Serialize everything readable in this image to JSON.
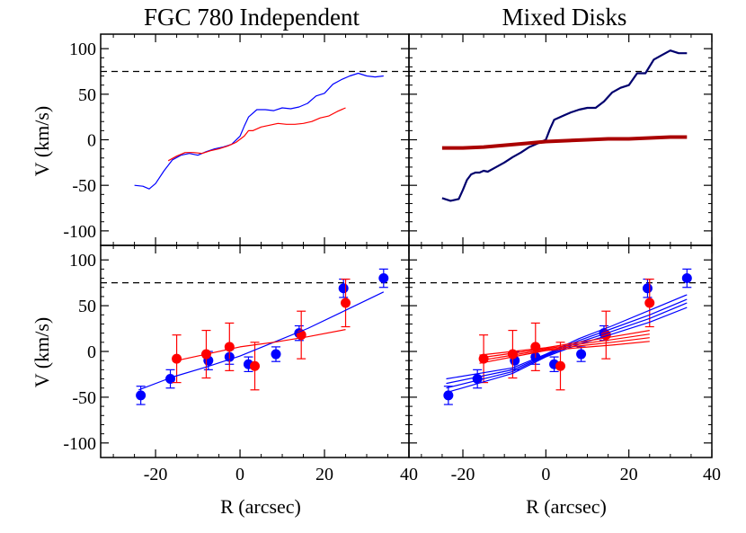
{
  "chart_data": [
    {
      "type": "line",
      "panel": "top-left",
      "title": "FGC 780 Independent",
      "xlabel": "",
      "ylabel": "V (km/s)",
      "xlim": [
        -33,
        40
      ],
      "ylim": [
        -110,
        110
      ],
      "yticks": [
        -100,
        -50,
        0,
        50,
        100
      ],
      "reference_line": {
        "y": 75,
        "style": "dashed",
        "color": "#000000"
      },
      "series": [
        {
          "color": "#0000ff",
          "x": [
            -25,
            -23,
            -21.5,
            -20,
            -18,
            -16,
            -14,
            -12,
            -10,
            -8,
            -6,
            -4,
            -2,
            0,
            1,
            2,
            4,
            6,
            8,
            10,
            12,
            14,
            16,
            18,
            20,
            22,
            24,
            26,
            28,
            30,
            32,
            34
          ],
          "y": [
            -50,
            -51,
            -54,
            -48,
            -34,
            -22,
            -17,
            -15,
            -17,
            -13,
            -10,
            -8,
            -5,
            4,
            15,
            25,
            33,
            33,
            32,
            35,
            34,
            36,
            40,
            48,
            51,
            61,
            66,
            70,
            73,
            70,
            69,
            70
          ]
        },
        {
          "color": "#ff0000",
          "x": [
            -17,
            -15,
            -13,
            -11,
            -9,
            -7,
            -5,
            -3,
            -1,
            1,
            2,
            3,
            5,
            7,
            9,
            11,
            13,
            15,
            17,
            19,
            21,
            23,
            25
          ],
          "y": [
            -23,
            -18,
            -14,
            -14,
            -15,
            -12,
            -10,
            -7,
            -3,
            4,
            10,
            10,
            14,
            16,
            18,
            17,
            17,
            18,
            20,
            24,
            26,
            31,
            35
          ]
        }
      ]
    },
    {
      "type": "line",
      "panel": "top-right",
      "title": "Mixed Disks",
      "xlabel": "",
      "ylabel": "",
      "xlim": [
        -33,
        40
      ],
      "ylim": [
        -110,
        110
      ],
      "reference_line": {
        "y": 75,
        "style": "dashed",
        "color": "#000000"
      },
      "series": [
        {
          "color": "#00006e",
          "x": [
            -25,
            -23,
            -21,
            -20,
            -19,
            -18,
            -17,
            -16,
            -15,
            -14,
            -12,
            -10,
            -8,
            -6,
            -4,
            -2,
            0,
            1,
            2,
            4,
            6,
            8,
            10,
            12,
            14,
            16,
            18,
            20,
            22,
            24,
            26,
            28,
            30,
            32,
            34
          ],
          "y": [
            -64,
            -67,
            -65,
            -55,
            -44,
            -38,
            -36,
            -36,
            -34,
            -35,
            -30,
            -25,
            -19,
            -14,
            -8,
            -4,
            0,
            12,
            22,
            26,
            30,
            33,
            35,
            35,
            42,
            52,
            57,
            60,
            73,
            73,
            88,
            93,
            98,
            95,
            95
          ]
        },
        {
          "color": "#aa0000",
          "x": [
            -25,
            -20,
            -15,
            -10,
            -5,
            0,
            5,
            10,
            15,
            20,
            25,
            30,
            34
          ],
          "y": [
            -9,
            -9,
            -8,
            -6,
            -4,
            -2,
            -1,
            0,
            1,
            1,
            2,
            3,
            3
          ]
        }
      ]
    },
    {
      "type": "scatter",
      "panel": "bottom-left",
      "title": "",
      "xlabel": "R (arcsec)",
      "ylabel": "V (km/s)",
      "xlim": [
        -33,
        40
      ],
      "ylim": [
        -110,
        110
      ],
      "xticks": [
        -20,
        0,
        20,
        40
      ],
      "yticks": [
        -100,
        -50,
        0,
        50,
        100
      ],
      "reference_line": {
        "y": 75,
        "style": "dashed",
        "color": "#000000"
      },
      "series": [
        {
          "kind": "points",
          "color": "#0000ff",
          "points": [
            {
              "x": -23.5,
              "y": -48,
              "err": 10
            },
            {
              "x": -16.5,
              "y": -30,
              "err": 10
            },
            {
              "x": -7.5,
              "y": -10,
              "err": 10
            },
            {
              "x": -2.5,
              "y": -6,
              "err": 8
            },
            {
              "x": 2,
              "y": -14,
              "err": 8
            },
            {
              "x": 8.5,
              "y": -3,
              "err": 8
            },
            {
              "x": 14,
              "y": 20,
              "err": 8
            },
            {
              "x": 24.5,
              "y": 69,
              "err": 10
            },
            {
              "x": 34,
              "y": 80,
              "err": 10
            }
          ]
        },
        {
          "kind": "points",
          "color": "#ff0000",
          "points": [
            {
              "x": -15,
              "y": -8,
              "err": 26
            },
            {
              "x": -8,
              "y": -3,
              "err": 26
            },
            {
              "x": -2.5,
              "y": 5,
              "err": 26
            },
            {
              "x": 3.5,
              "y": -16,
              "err": 26
            },
            {
              "x": 14.5,
              "y": 18,
              "err": 26
            },
            {
              "x": 25,
              "y": 53,
              "err": 26
            }
          ]
        },
        {
          "kind": "line",
          "color": "#0000ff",
          "x": [
            -24,
            -16,
            -8,
            0,
            8,
            16,
            25,
            34
          ],
          "y": [
            -42,
            -28,
            -17,
            -5,
            10,
            25,
            45,
            65
          ]
        },
        {
          "kind": "line",
          "color": "#ff0000",
          "x": [
            -16,
            -8,
            0,
            8,
            16,
            25
          ],
          "y": [
            -11,
            -3,
            5,
            10,
            16,
            24
          ]
        }
      ]
    },
    {
      "type": "scatter",
      "panel": "bottom-right",
      "title": "",
      "xlabel": "R (arcsec)",
      "ylabel": "",
      "xlim": [
        -33,
        40
      ],
      "ylim": [
        -110,
        110
      ],
      "xticks": [
        -20,
        0,
        20,
        40
      ],
      "reference_line": {
        "y": 75,
        "style": "dashed",
        "color": "#000000"
      },
      "series": [
        {
          "kind": "points",
          "color": "#0000ff",
          "points": [
            {
              "x": -23.5,
              "y": -48,
              "err": 10
            },
            {
              "x": -16.5,
              "y": -30,
              "err": 10
            },
            {
              "x": -7.5,
              "y": -10,
              "err": 10
            },
            {
              "x": -2.5,
              "y": -6,
              "err": 8
            },
            {
              "x": 2,
              "y": -14,
              "err": 8
            },
            {
              "x": 8.5,
              "y": -3,
              "err": 8
            },
            {
              "x": 14,
              "y": 20,
              "err": 8
            },
            {
              "x": 24.5,
              "y": 69,
              "err": 10
            },
            {
              "x": 34,
              "y": 80,
              "err": 10
            }
          ]
        },
        {
          "kind": "points",
          "color": "#ff0000",
          "points": [
            {
              "x": -15,
              "y": -8,
              "err": 26
            },
            {
              "x": -8,
              "y": -3,
              "err": 26
            },
            {
              "x": -2.5,
              "y": 5,
              "err": 26
            },
            {
              "x": 3.5,
              "y": -16,
              "err": 26
            },
            {
              "x": 14.5,
              "y": 18,
              "err": 26
            },
            {
              "x": 25,
              "y": 53,
              "err": 26
            }
          ]
        },
        {
          "kind": "line",
          "color": "#0000ff",
          "x": [
            -24,
            -8,
            0,
            8,
            16,
            25,
            34
          ],
          "y": [
            -30,
            -18,
            -3,
            14,
            28,
            45,
            62
          ]
        },
        {
          "kind": "line",
          "color": "#0000ff",
          "x": [
            -24,
            -8,
            0,
            8,
            16,
            25,
            34
          ],
          "y": [
            -35,
            -20,
            -4,
            12,
            25,
            40,
            57
          ]
        },
        {
          "kind": "line",
          "color": "#0000ff",
          "x": [
            -24,
            -8,
            0,
            8,
            16,
            25,
            34
          ],
          "y": [
            -40,
            -22,
            -5,
            10,
            22,
            36,
            53
          ]
        },
        {
          "kind": "line",
          "color": "#0000ff",
          "x": [
            -24,
            -8,
            0,
            8,
            16,
            25,
            34
          ],
          "y": [
            -45,
            -24,
            -6,
            8,
            19,
            32,
            48
          ]
        },
        {
          "kind": "line",
          "color": "#ff0000",
          "x": [
            -16,
            -8,
            0,
            8,
            16,
            25
          ],
          "y": [
            -4,
            0,
            4,
            10,
            16,
            23
          ]
        },
        {
          "kind": "line",
          "color": "#ff0000",
          "x": [
            -16,
            -8,
            0,
            8,
            16,
            25
          ],
          "y": [
            -7,
            -2,
            3,
            8,
            13,
            19
          ]
        },
        {
          "kind": "line",
          "color": "#ff0000",
          "x": [
            -16,
            -8,
            0,
            8,
            16,
            25
          ],
          "y": [
            -10,
            -4,
            2,
            6,
            10,
            15
          ]
        },
        {
          "kind": "line",
          "color": "#ff0000",
          "x": [
            -16,
            -8,
            0,
            8,
            16,
            25
          ],
          "y": [
            -13,
            -6,
            1,
            4,
            7,
            11
          ]
        }
      ]
    }
  ]
}
